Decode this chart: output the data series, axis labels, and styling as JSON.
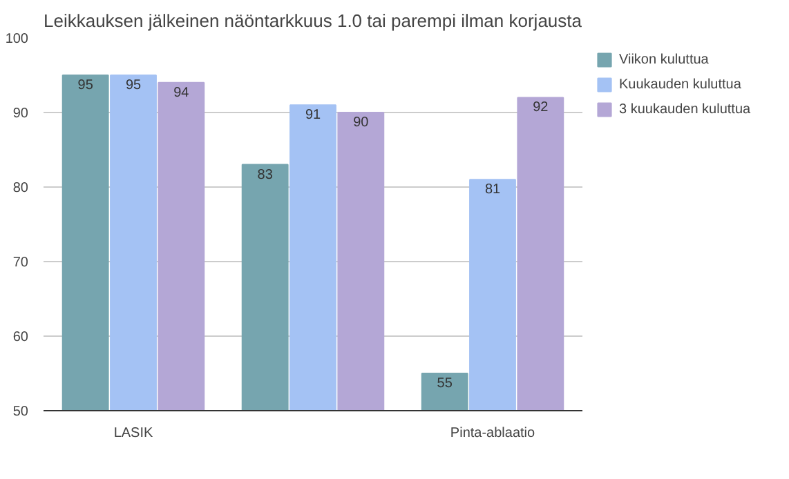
{
  "chart_data": {
    "type": "bar",
    "title": "Leikkauksen jälkeinen näöntarkkuus 1.0 tai parempi ilman korjausta",
    "categories": [
      "LASIK",
      null,
      "Pinta-ablaatio"
    ],
    "series": [
      {
        "name": "Viikon kuluttua",
        "color": "#76a5af",
        "values": [
          95,
          83,
          55
        ]
      },
      {
        "name": "Kuukauden kuluttua",
        "color": "#a4c2f4",
        "values": [
          95,
          91,
          81
        ]
      },
      {
        "name": "3 kuukauden kuluttua",
        "color": "#b4a7d6",
        "values": [
          94,
          90,
          92
        ]
      }
    ],
    "ylim": [
      50,
      100
    ],
    "yticks": [
      50,
      60,
      70,
      80,
      90,
      100
    ],
    "grid": "y",
    "legend": "top right",
    "data_labels": true
  }
}
